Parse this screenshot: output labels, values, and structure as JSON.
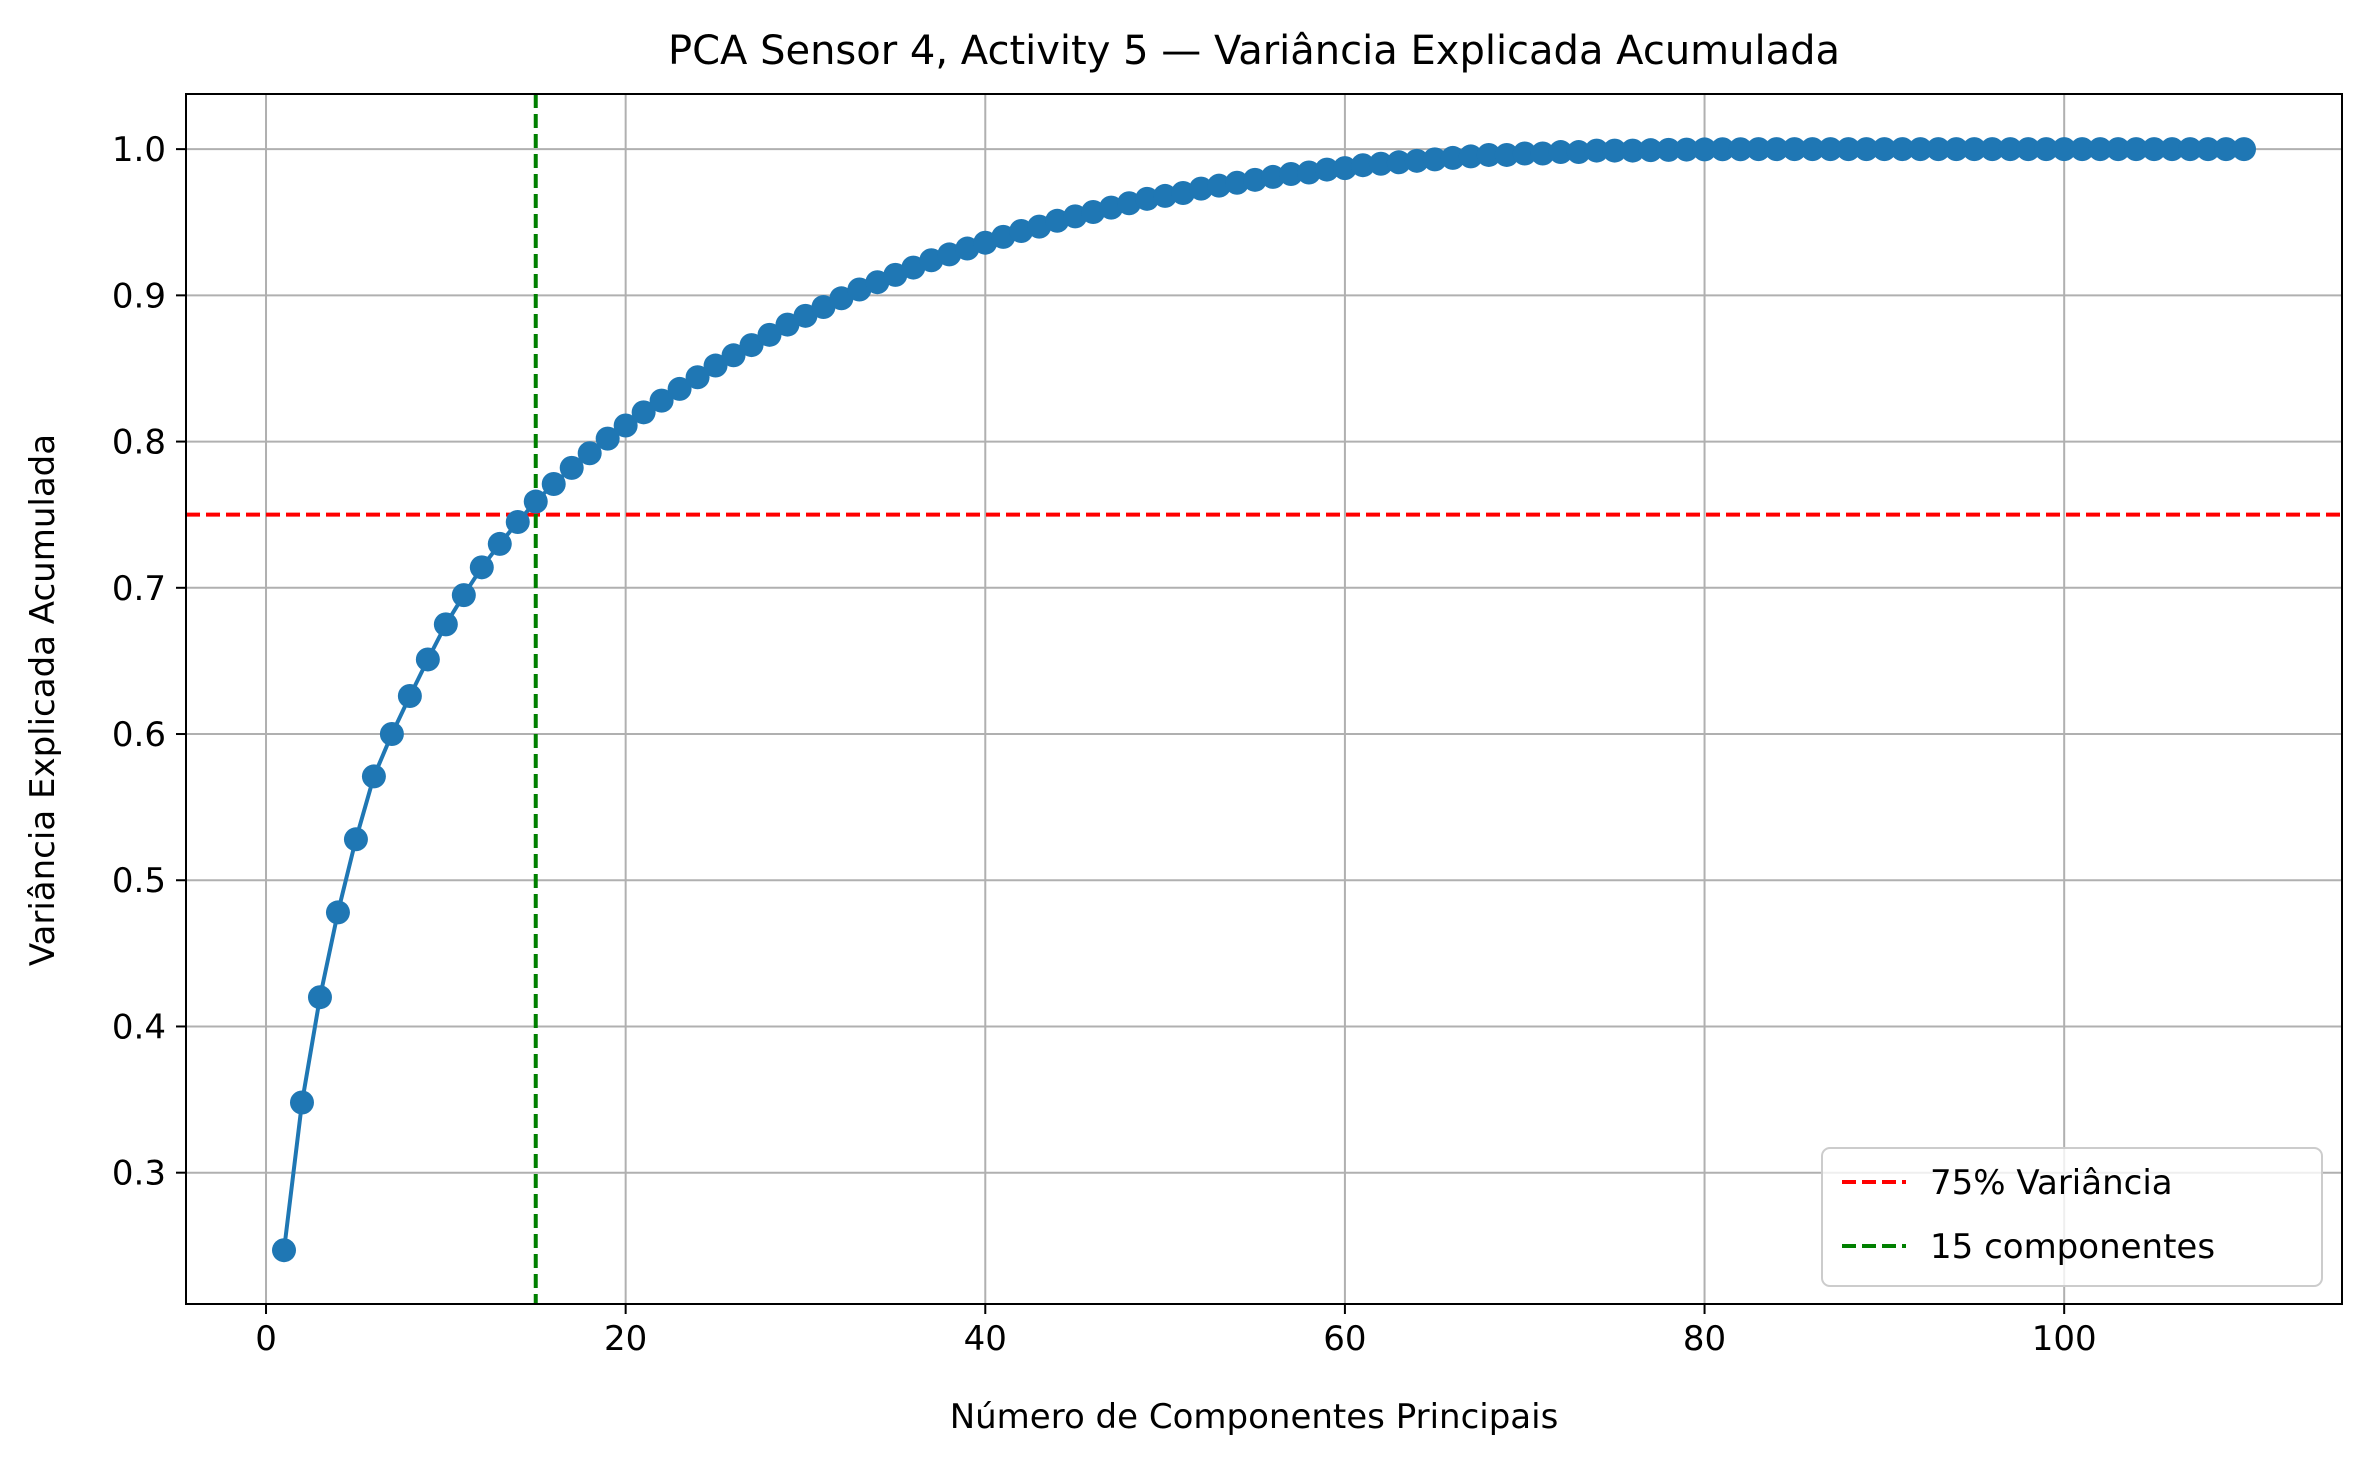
{
  "chart_data": {
    "type": "line",
    "title": "PCA Sensor 4, Activity 5 — Variância Explicada Acumulada",
    "xlabel": "Número de Componentes Principais",
    "ylabel": "Variância Explicada Acumulada",
    "xlim": [
      -4.45,
      115.45
    ],
    "ylim": [
      0.2102,
      1.0377
    ],
    "xticks": [
      0,
      20,
      40,
      60,
      80,
      100
    ],
    "xtick_labels": [
      "0",
      "20",
      "40",
      "60",
      "80",
      "100"
    ],
    "yticks": [
      0.3,
      0.4,
      0.5,
      0.6,
      0.7,
      0.8,
      0.9,
      1.0
    ],
    "ytick_labels": [
      "0.3",
      "0.4",
      "0.5",
      "0.6",
      "0.7",
      "0.8",
      "0.9",
      "1.0"
    ],
    "grid": true,
    "legend_position": "lower-right",
    "series": [
      {
        "color": "#1f77b4",
        "marker": "circle",
        "x": [
          1,
          2,
          3,
          4,
          5,
          6,
          7,
          8,
          9,
          10,
          11,
          12,
          13,
          14,
          15,
          16,
          17,
          18,
          19,
          20,
          21,
          22,
          23,
          24,
          25,
          26,
          27,
          28,
          29,
          30,
          31,
          32,
          33,
          34,
          35,
          36,
          37,
          38,
          39,
          40,
          41,
          42,
          43,
          44,
          45,
          46,
          47,
          48,
          49,
          50,
          51,
          52,
          53,
          54,
          55,
          56,
          57,
          58,
          59,
          60,
          61,
          62,
          63,
          64,
          65,
          66,
          67,
          68,
          69,
          70,
          71,
          72,
          73,
          74,
          75,
          76,
          77,
          78,
          79,
          80,
          81,
          82,
          83,
          84,
          85,
          86,
          87,
          88,
          89,
          90,
          91,
          92,
          93,
          94,
          95,
          96,
          97,
          98,
          99,
          100,
          101,
          102,
          103,
          104,
          105,
          106,
          107,
          108,
          109,
          110
        ],
        "y": [
          0.247,
          0.348,
          0.42,
          0.478,
          0.528,
          0.571,
          0.6,
          0.626,
          0.651,
          0.675,
          0.695,
          0.714,
          0.73,
          0.745,
          0.759,
          0.771,
          0.782,
          0.792,
          0.802,
          0.811,
          0.82,
          0.828,
          0.836,
          0.844,
          0.852,
          0.859,
          0.866,
          0.873,
          0.88,
          0.886,
          0.892,
          0.898,
          0.904,
          0.909,
          0.914,
          0.919,
          0.924,
          0.928,
          0.932,
          0.936,
          0.94,
          0.944,
          0.947,
          0.951,
          0.954,
          0.957,
          0.96,
          0.963,
          0.966,
          0.968,
          0.97,
          0.973,
          0.975,
          0.977,
          0.979,
          0.981,
          0.983,
          0.984,
          0.986,
          0.987,
          0.989,
          0.99,
          0.991,
          0.992,
          0.993,
          0.994,
          0.995,
          0.996,
          0.996,
          0.997,
          0.997,
          0.998,
          0.998,
          0.999,
          0.999,
          0.999,
          0.9993,
          0.9995,
          0.9997,
          0.9998,
          0.9999,
          0.9999,
          1.0,
          1.0,
          1.0,
          1.0,
          1.0,
          1.0,
          1.0,
          1.0,
          1.0,
          1.0,
          1.0,
          1.0,
          1.0,
          1.0,
          1.0,
          1.0,
          1.0,
          1.0,
          1.0,
          1.0,
          1.0,
          1.0,
          1.0,
          1.0,
          1.0,
          1.0,
          1.0,
          1.0
        ]
      }
    ],
    "reference_lines": [
      {
        "orientation": "horizontal",
        "value": 0.75,
        "color": "#ff0000",
        "style": "dashed",
        "label": "75% Variância"
      },
      {
        "orientation": "vertical",
        "value": 15,
        "color": "#008000",
        "style": "dashed",
        "label": "15 componentes"
      }
    ]
  }
}
